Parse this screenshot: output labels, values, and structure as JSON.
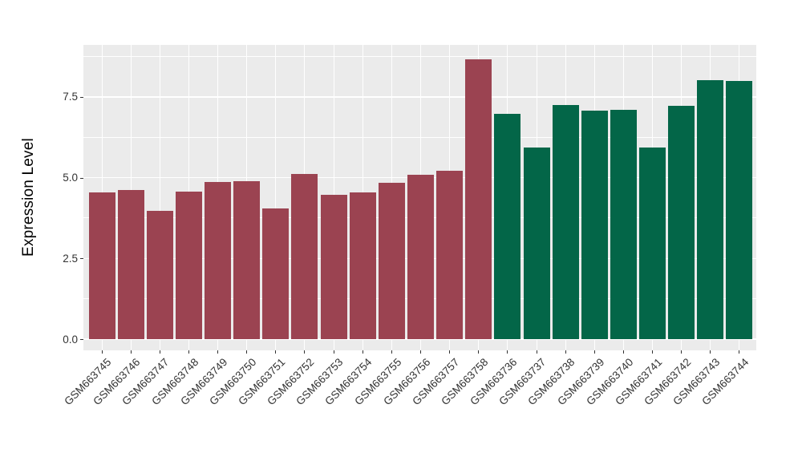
{
  "chart_data": {
    "type": "bar",
    "title": "",
    "xlabel": "",
    "ylabel": "Expression Level",
    "ylim": [
      0,
      9.11
    ],
    "yticks": [
      0.0,
      2.5,
      5.0,
      7.5
    ],
    "ytick_labels": [
      "0.0",
      "2.5",
      "5.0",
      "7.5"
    ],
    "minor_gridlines": [
      1.25,
      3.75,
      6.25,
      8.75
    ],
    "grid": true,
    "legend_position": "none",
    "categories": [
      "GSM663745",
      "GSM663746",
      "GSM663747",
      "GSM663748",
      "GSM663749",
      "GSM663750",
      "GSM663751",
      "GSM663752",
      "GSM663753",
      "GSM663754",
      "GSM663755",
      "GSM663756",
      "GSM663757",
      "GSM663758",
      "GSM663736",
      "GSM663737",
      "GSM663738",
      "GSM663739",
      "GSM663740",
      "GSM663741",
      "GSM663742",
      "GSM663743",
      "GSM663744"
    ],
    "values": [
      4.54,
      4.62,
      3.97,
      4.58,
      4.87,
      4.89,
      4.04,
      5.11,
      4.47,
      4.55,
      4.84,
      5.09,
      5.21,
      8.67,
      6.98,
      5.93,
      7.24,
      7.09,
      7.11,
      5.93,
      7.22,
      8.02,
      8.0
    ],
    "groups": [
      "red",
      "red",
      "red",
      "red",
      "red",
      "red",
      "red",
      "red",
      "red",
      "red",
      "red",
      "red",
      "red",
      "red",
      "green",
      "green",
      "green",
      "green",
      "green",
      "green",
      "green",
      "green",
      "green"
    ],
    "group_colors": {
      "red": "#9b4351",
      "green": "#036648"
    }
  },
  "style": {
    "panel_background": "#ebebeb",
    "gridline_color": "#ffffff",
    "axis_text_color": "#333333",
    "axis_title_color": "#000000",
    "tick_color": "#333333"
  }
}
